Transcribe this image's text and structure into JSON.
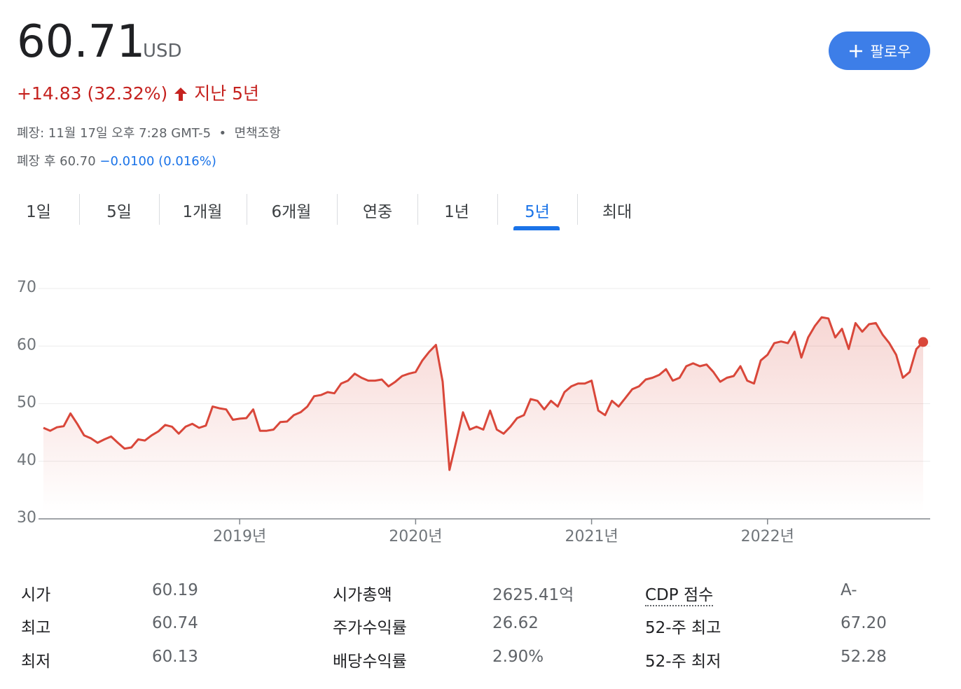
{
  "header": {
    "price": "60.71",
    "currency": "USD",
    "change": "+14.83 (32.32%)",
    "period": "지난 5년",
    "closed": "폐장: 11월 17일 오후 7:28 GMT-5",
    "separator": "•",
    "disclaimer": "면책조항",
    "after_hours": "폐장 후 60.70",
    "after_hours_change": "−0.0100 (0.016%)"
  },
  "follow_button": "팔로우",
  "tabs": [
    "1일",
    "5일",
    "1개월",
    "6개월",
    "연중",
    "1년",
    "5년",
    "최대"
  ],
  "selected_tab": 6,
  "chart_data": {
    "type": "line",
    "color": "#d9473a",
    "grid": true,
    "ylim": [
      30,
      70
    ],
    "yticks": [
      30,
      40,
      50,
      60,
      70
    ],
    "categories": [
      null,
      null,
      null,
      null,
      null,
      null,
      null,
      null,
      null,
      null,
      null,
      null,
      null,
      null,
      null,
      null,
      null,
      null,
      null,
      null,
      null,
      null,
      null,
      null,
      null,
      null,
      null,
      null,
      null,
      "2019년",
      null,
      null,
      null,
      null,
      null,
      null,
      null,
      null,
      null,
      null,
      null,
      null,
      null,
      null,
      null,
      null,
      null,
      null,
      null,
      null,
      null,
      null,
      null,
      null,
      null,
      "2020년",
      null,
      null,
      null,
      null,
      null,
      null,
      null,
      null,
      null,
      null,
      null,
      null,
      null,
      null,
      null,
      null,
      null,
      null,
      null,
      null,
      null,
      null,
      null,
      null,
      null,
      "2021년",
      null,
      null,
      null,
      null,
      null,
      null,
      null,
      null,
      null,
      null,
      null,
      null,
      null,
      null,
      null,
      null,
      null,
      null,
      null,
      null,
      null,
      null,
      null,
      null,
      null,
      "2022년",
      null,
      null,
      null,
      null,
      null,
      null,
      null,
      null,
      null,
      null,
      null,
      null,
      null,
      null,
      null,
      null,
      null,
      null,
      null,
      null,
      null,
      null,
      null
    ],
    "values": [
      45.8,
      45.3,
      45.9,
      46.1,
      48.3,
      46.5,
      44.5,
      44.0,
      43.2,
      43.8,
      44.3,
      43.2,
      42.2,
      42.4,
      43.8,
      43.6,
      44.5,
      45.2,
      46.3,
      46.0,
      44.8,
      46.0,
      46.5,
      45.8,
      46.2,
      49.5,
      49.2,
      49.0,
      47.2,
      47.4,
      47.5,
      49.0,
      45.3,
      45.3,
      45.5,
      46.8,
      46.9,
      48.0,
      48.5,
      49.5,
      51.3,
      51.5,
      52.0,
      51.8,
      53.5,
      54.0,
      55.2,
      54.5,
      54.0,
      54.0,
      54.2,
      53.0,
      53.8,
      54.8,
      55.2,
      55.5,
      57.5,
      59.0,
      60.2,
      53.8,
      38.5,
      43.5,
      48.5,
      45.5,
      46.0,
      45.5,
      48.8,
      45.5,
      44.8,
      46.0,
      47.5,
      48.0,
      50.8,
      50.5,
      49.0,
      50.5,
      49.5,
      52.0,
      53.0,
      53.5,
      53.5,
      54.0,
      48.8,
      48.0,
      50.5,
      49.5,
      51.0,
      52.5,
      53.0,
      54.2,
      54.5,
      55.0,
      56.0,
      54.0,
      54.5,
      56.5,
      57.0,
      56.5,
      56.8,
      55.5,
      53.8,
      54.5,
      54.8,
      56.5,
      54.0,
      53.5,
      57.5,
      58.5,
      60.5,
      60.8,
      60.5,
      62.5,
      58.0,
      61.5,
      63.5,
      65.0,
      64.8,
      61.5,
      63.0,
      59.5,
      64.0,
      62.5,
      63.8,
      64.0,
      62.0,
      60.5,
      58.5,
      54.5,
      55.5,
      59.5,
      60.71
    ]
  },
  "stats": {
    "rows": [
      [
        {
          "label": "시가",
          "value": "60.19"
        },
        {
          "label": "시가총액",
          "value": "2625.41억"
        },
        {
          "label": "CDP 점수",
          "value": "A-"
        }
      ],
      [
        {
          "label": "최고",
          "value": "60.74"
        },
        {
          "label": "주가수익률",
          "value": "26.62"
        },
        {
          "label": "52-주 최고",
          "value": "67.20"
        }
      ],
      [
        {
          "label": "최저",
          "value": "60.13"
        },
        {
          "label": "배당수익률",
          "value": "2.90%"
        },
        {
          "label": "52-주 최저",
          "value": "52.28"
        }
      ]
    ]
  }
}
